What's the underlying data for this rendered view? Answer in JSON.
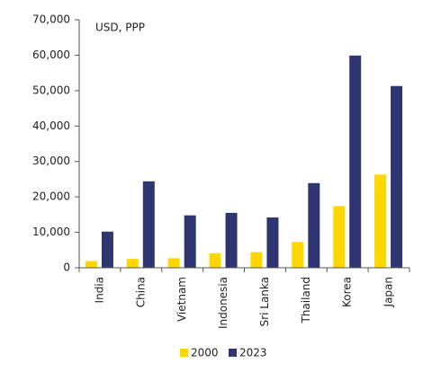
{
  "chart_data": {
    "type": "bar",
    "annotation": "USD, PPP",
    "categories": [
      "India",
      "China",
      "Vietnam",
      "Indonesia",
      "Sri Lanka",
      "Thailand",
      "Korea",
      "Japan"
    ],
    "series": [
      {
        "name": "2000",
        "color": "#ffd600",
        "values": [
          1900,
          2500,
          2700,
          4100,
          4400,
          7300,
          17400,
          26300
        ]
      },
      {
        "name": "2023",
        "color": "#2f3570",
        "values": [
          10200,
          24400,
          14800,
          15500,
          14200,
          23900,
          59900,
          51300
        ]
      }
    ],
    "ylim": [
      0,
      70000
    ],
    "yticks": [
      0,
      {
        "value": 10000,
        "label": "10,000"
      },
      {
        "value": 20000,
        "label": "20,000"
      },
      {
        "value": 30000,
        "label": "30,000"
      },
      {
        "value": 40000,
        "label": "40,000"
      },
      {
        "value": 50000,
        "label": "50,000"
      },
      {
        "value": 60000,
        "label": "60,000"
      },
      {
        "value": 70000,
        "label": "70,000"
      }
    ],
    "grid": false,
    "legend": "bottom"
  }
}
